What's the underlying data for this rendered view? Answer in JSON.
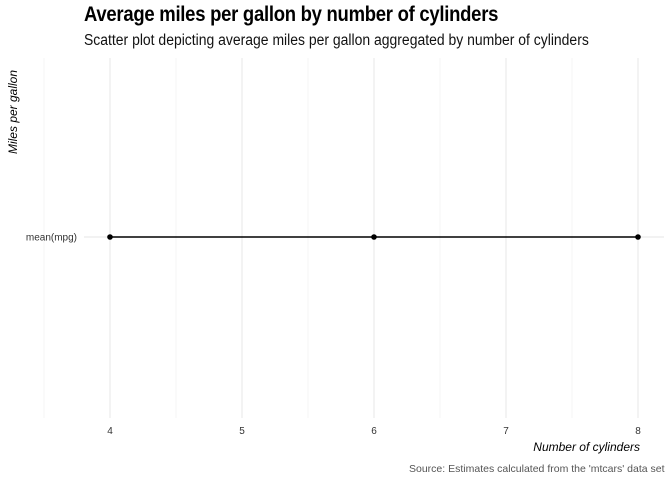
{
  "chart_data": {
    "type": "line",
    "title": "Average miles per gallon by number of cylinders",
    "subtitle": "Scatter plot depicting average miles per gallon aggregated by number of cylinders",
    "xlabel": "Number of cylinders",
    "ylabel": "Miles per gallon",
    "caption": "Source: Estimates calculated from the 'mtcars' data set",
    "x_ticks": [
      4,
      5,
      6,
      7,
      8
    ],
    "xlim": [
      3.5,
      8.2
    ],
    "categories": [
      "mean(mpg)"
    ],
    "series": [
      {
        "x": [
          4,
          6,
          8
        ],
        "y": [
          "mean(mpg)",
          "mean(mpg)",
          "mean(mpg)"
        ]
      }
    ],
    "grid": true,
    "colors": {
      "line": "#000000",
      "point": "#000000",
      "grid": "#e5e5e5"
    }
  }
}
